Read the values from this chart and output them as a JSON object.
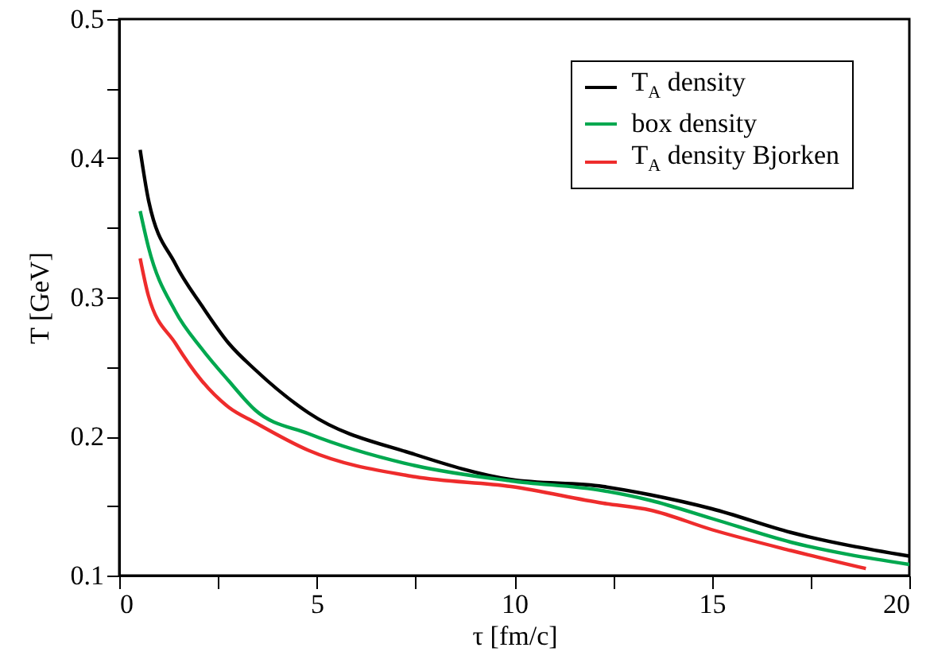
{
  "chart_data": {
    "type": "line",
    "xlabel": "τ [fm/c]",
    "ylabel": "T [GeV]",
    "xlim": [
      0,
      20
    ],
    "ylim": [
      0.1,
      0.5
    ],
    "xticks": [
      0,
      {
        "value": 2.5,
        "label": null
      },
      5,
      {
        "value": 7.5,
        "label": null
      },
      10,
      {
        "value": 12.5,
        "label": null
      },
      15,
      {
        "value": 17.5,
        "label": null
      },
      20
    ],
    "yticks": [
      0.1,
      {
        "value": 0.15,
        "label": null
      },
      0.2,
      {
        "value": 0.25,
        "label": null
      },
      0.3,
      {
        "value": 0.35,
        "label": null
      },
      0.4,
      {
        "value": 0.45,
        "label": null
      },
      0.5
    ],
    "x": [
      0.53,
      0.74,
      1.42,
      2.09,
      2.77,
      3.44,
      4.79,
      7.49,
      9.92,
      12.25,
      13.45,
      15,
      17,
      20
    ],
    "legend": "top right",
    "series": [
      {
        "name": "T$_{A}$ density",
        "color": "#000000",
        "values": [
          0.406,
          0.37,
          0.324,
          0.294,
          0.267,
          0.248,
          0.217,
          0.187,
          0.169,
          0.164,
          0.158,
          0.148,
          0.131,
          0.114
        ]
      },
      {
        "name": "box density",
        "color": "#00a84f",
        "values": [
          0.362,
          0.336,
          0.29,
          0.263,
          0.24,
          0.219,
          0.202,
          0.179,
          0.168,
          0.161,
          0.154,
          0.141,
          0.124,
          0.108
        ]
      },
      {
        "name": "T$_{A}$ density Bjorken",
        "color": "#ee2c2c",
        "x": [
          0.53,
          0.74,
          1.42,
          2.09,
          2.77,
          3.44,
          4.79,
          7.49,
          9.92,
          12.25,
          13.45,
          15,
          17,
          18.9
        ],
        "values": [
          0.328,
          0.301,
          0.267,
          0.24,
          0.221,
          0.21,
          0.19,
          0.171,
          0.164,
          0.152,
          0.147,
          0.133,
          0.118,
          0.105
        ]
      }
    ]
  }
}
